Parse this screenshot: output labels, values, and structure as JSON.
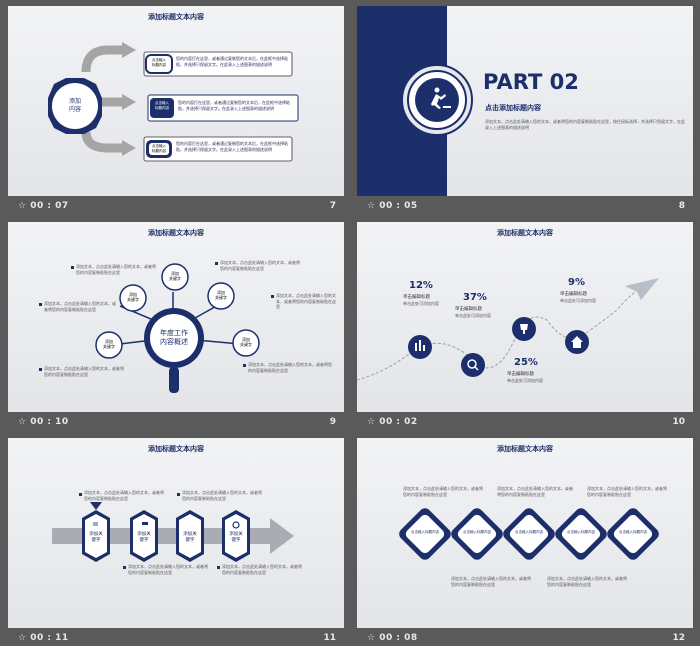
{
  "colors": {
    "navy": "#1d2f6b",
    "gray": "#a5a5a5",
    "bg": "#5a5a5a"
  },
  "slides": [
    {
      "title": "添加标题文本内容",
      "time": "00 : 07",
      "num": "7",
      "center": "添加\n内容",
      "small": "点击输入\n标题内容",
      "desc": "您的内容打在这里，或者通过复制您的文本后，在此框中选择粘贴，并选择只保留文字。在此录入上述图表的描述说明"
    },
    {
      "time": "00 : 05",
      "num": "8",
      "part": "PART 02",
      "sub": "点击添加标题内容",
      "desc": "添加文本，点击此处请输入您的文本，或者将您的内容复制粘贴在这里，按住鼠标选择，并选择只保留文字，在此录入上述图表的描述说明"
    },
    {
      "title": "添加标题文本内容",
      "time": "00 : 10",
      "num": "9",
      "center": "年度工作\n内容概述",
      "kw": "添加\n关键字",
      "desc": "添加文本，点击此处请输入您的文本，或者将您的内容复制粘贴在这里"
    },
    {
      "title": "添加标题文本内容",
      "time": "00 : 02",
      "num": "10",
      "percents": [
        "12%",
        "37%",
        "25%",
        "9%"
      ],
      "label": "单击编辑标题",
      "sublabel": "单击此处可添加内容"
    },
    {
      "title": "添加标题文本内容",
      "time": "00 : 11",
      "num": "11",
      "kw": "添加关\n键字",
      "desc": "添加文本，点击此处请输入您的文本，或者将您的内容复制粘贴在这里"
    },
    {
      "title": "添加标题文本内容",
      "time": "00 : 08",
      "num": "12",
      "kw": "点击输入标题内容",
      "desc": "添加文本，点击此处请输入您的文本，或者将您的内容复制粘贴在这里"
    }
  ]
}
